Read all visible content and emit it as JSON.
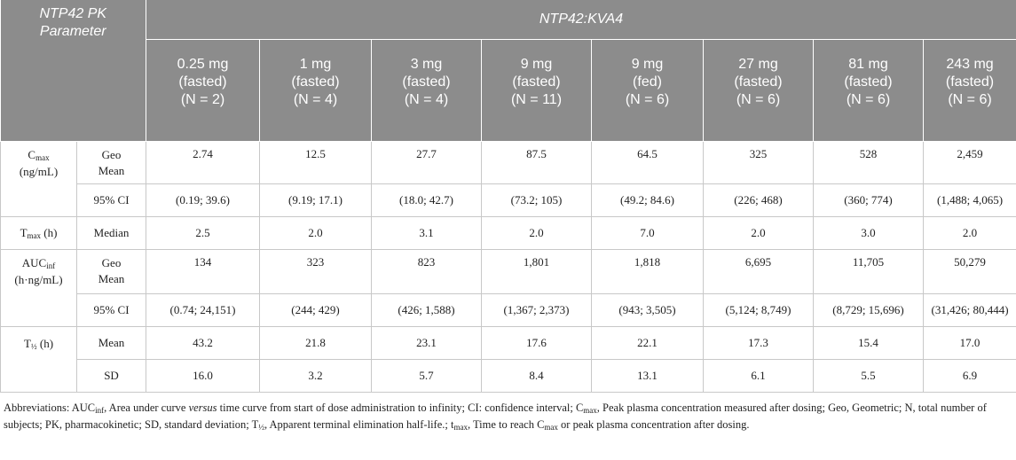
{
  "header": {
    "corner_line1": "NTP42 PK",
    "corner_line2": "Parameter",
    "group": "NTP42:KVA4",
    "doses": [
      {
        "dose": "0.25 mg",
        "state": "(fasted)",
        "n": "(N = 2)"
      },
      {
        "dose": "1 mg",
        "state": "(fasted)",
        "n": "(N = 4)"
      },
      {
        "dose": "3 mg",
        "state": "(fasted)",
        "n": "(N = 4)"
      },
      {
        "dose": "9 mg",
        "state": "(fasted)",
        "n": "(N = 11)"
      },
      {
        "dose": "9 mg",
        "state": "(fed)",
        "n": "(N = 6)"
      },
      {
        "dose": "27 mg",
        "state": "(fasted)",
        "n": "(N = 6)"
      },
      {
        "dose": "81 mg",
        "state": "(fasted)",
        "n": "(N = 6)"
      },
      {
        "dose": "243 mg",
        "state": "(fasted)",
        "n": "(N = 6)"
      }
    ]
  },
  "rows": {
    "cmax": {
      "param": "C",
      "param_sub": "max",
      "unit": "(ng/mL)",
      "geo_label1": "Geo",
      "geo_label2": "Mean",
      "geo": [
        "2.74",
        "12.5",
        "27.7",
        "87.5",
        "64.5",
        "325",
        "528",
        "2,459"
      ],
      "ci_label": "95% CI",
      "ci": [
        "(0.19; 39.6)",
        "(9.19; 17.1)",
        "(18.0; 42.7)",
        "(73.2; 105)",
        "(49.2; 84.6)",
        "(226; 468)",
        "(360; 774)",
        "(1,488; 4,065)"
      ]
    },
    "tmax": {
      "param": "T",
      "param_sub": "max",
      "unit": "(h)",
      "label": "Median",
      "values": [
        "2.5",
        "2.0",
        "3.1",
        "2.0",
        "7.0",
        "2.0",
        "3.0",
        "2.0"
      ]
    },
    "auc": {
      "param": "AUC",
      "param_sub": "inf",
      "unit": "(h·ng/mL)",
      "geo_label1": "Geo",
      "geo_label2": "Mean",
      "geo": [
        "134",
        "323",
        "823",
        "1,801",
        "1,818",
        "6,695",
        "11,705",
        "50,279"
      ],
      "ci_label": "95% CI",
      "ci": [
        "(0.74; 24,151)",
        "(244; 429)",
        "(426; 1,588)",
        "(1,367; 2,373)",
        "(943; 3,505)",
        "(5,124; 8,749)",
        "(8,729; 15,696)",
        "(31,426; 80,444)"
      ]
    },
    "thalf": {
      "param": "T",
      "param_sub": "½",
      "unit": "(h)",
      "mean_label": "Mean",
      "mean": [
        "43.2",
        "21.8",
        "23.1",
        "17.6",
        "22.1",
        "17.3",
        "15.4",
        "17.0"
      ],
      "sd_label": "SD",
      "sd": [
        "16.0",
        "3.2",
        "5.7",
        "8.4",
        "13.1",
        "6.1",
        "5.5",
        "6.9"
      ]
    }
  },
  "footnote": {
    "p1": "Abbreviations: AUC",
    "p1_sub": "inf",
    "p2": ", Area under curve ",
    "p2_italic": "versus",
    "p3": " time curve from start of dose administration to infinity; CI: confidence interval; C",
    "p3_sub": "max",
    "p4": ", Peak plasma concentration measured after dosing; Geo, Geometric; N, total number of subjects; PK, pharmacokinetic; SD, standard deviation; T",
    "p4_sub": "½",
    "p5": ", Apparent terminal elimination half-life.; t",
    "p5_sub": "max",
    "p6": ", Time to reach C",
    "p6_sub": "max",
    "p7": " or peak plasma concentration after dosing."
  }
}
